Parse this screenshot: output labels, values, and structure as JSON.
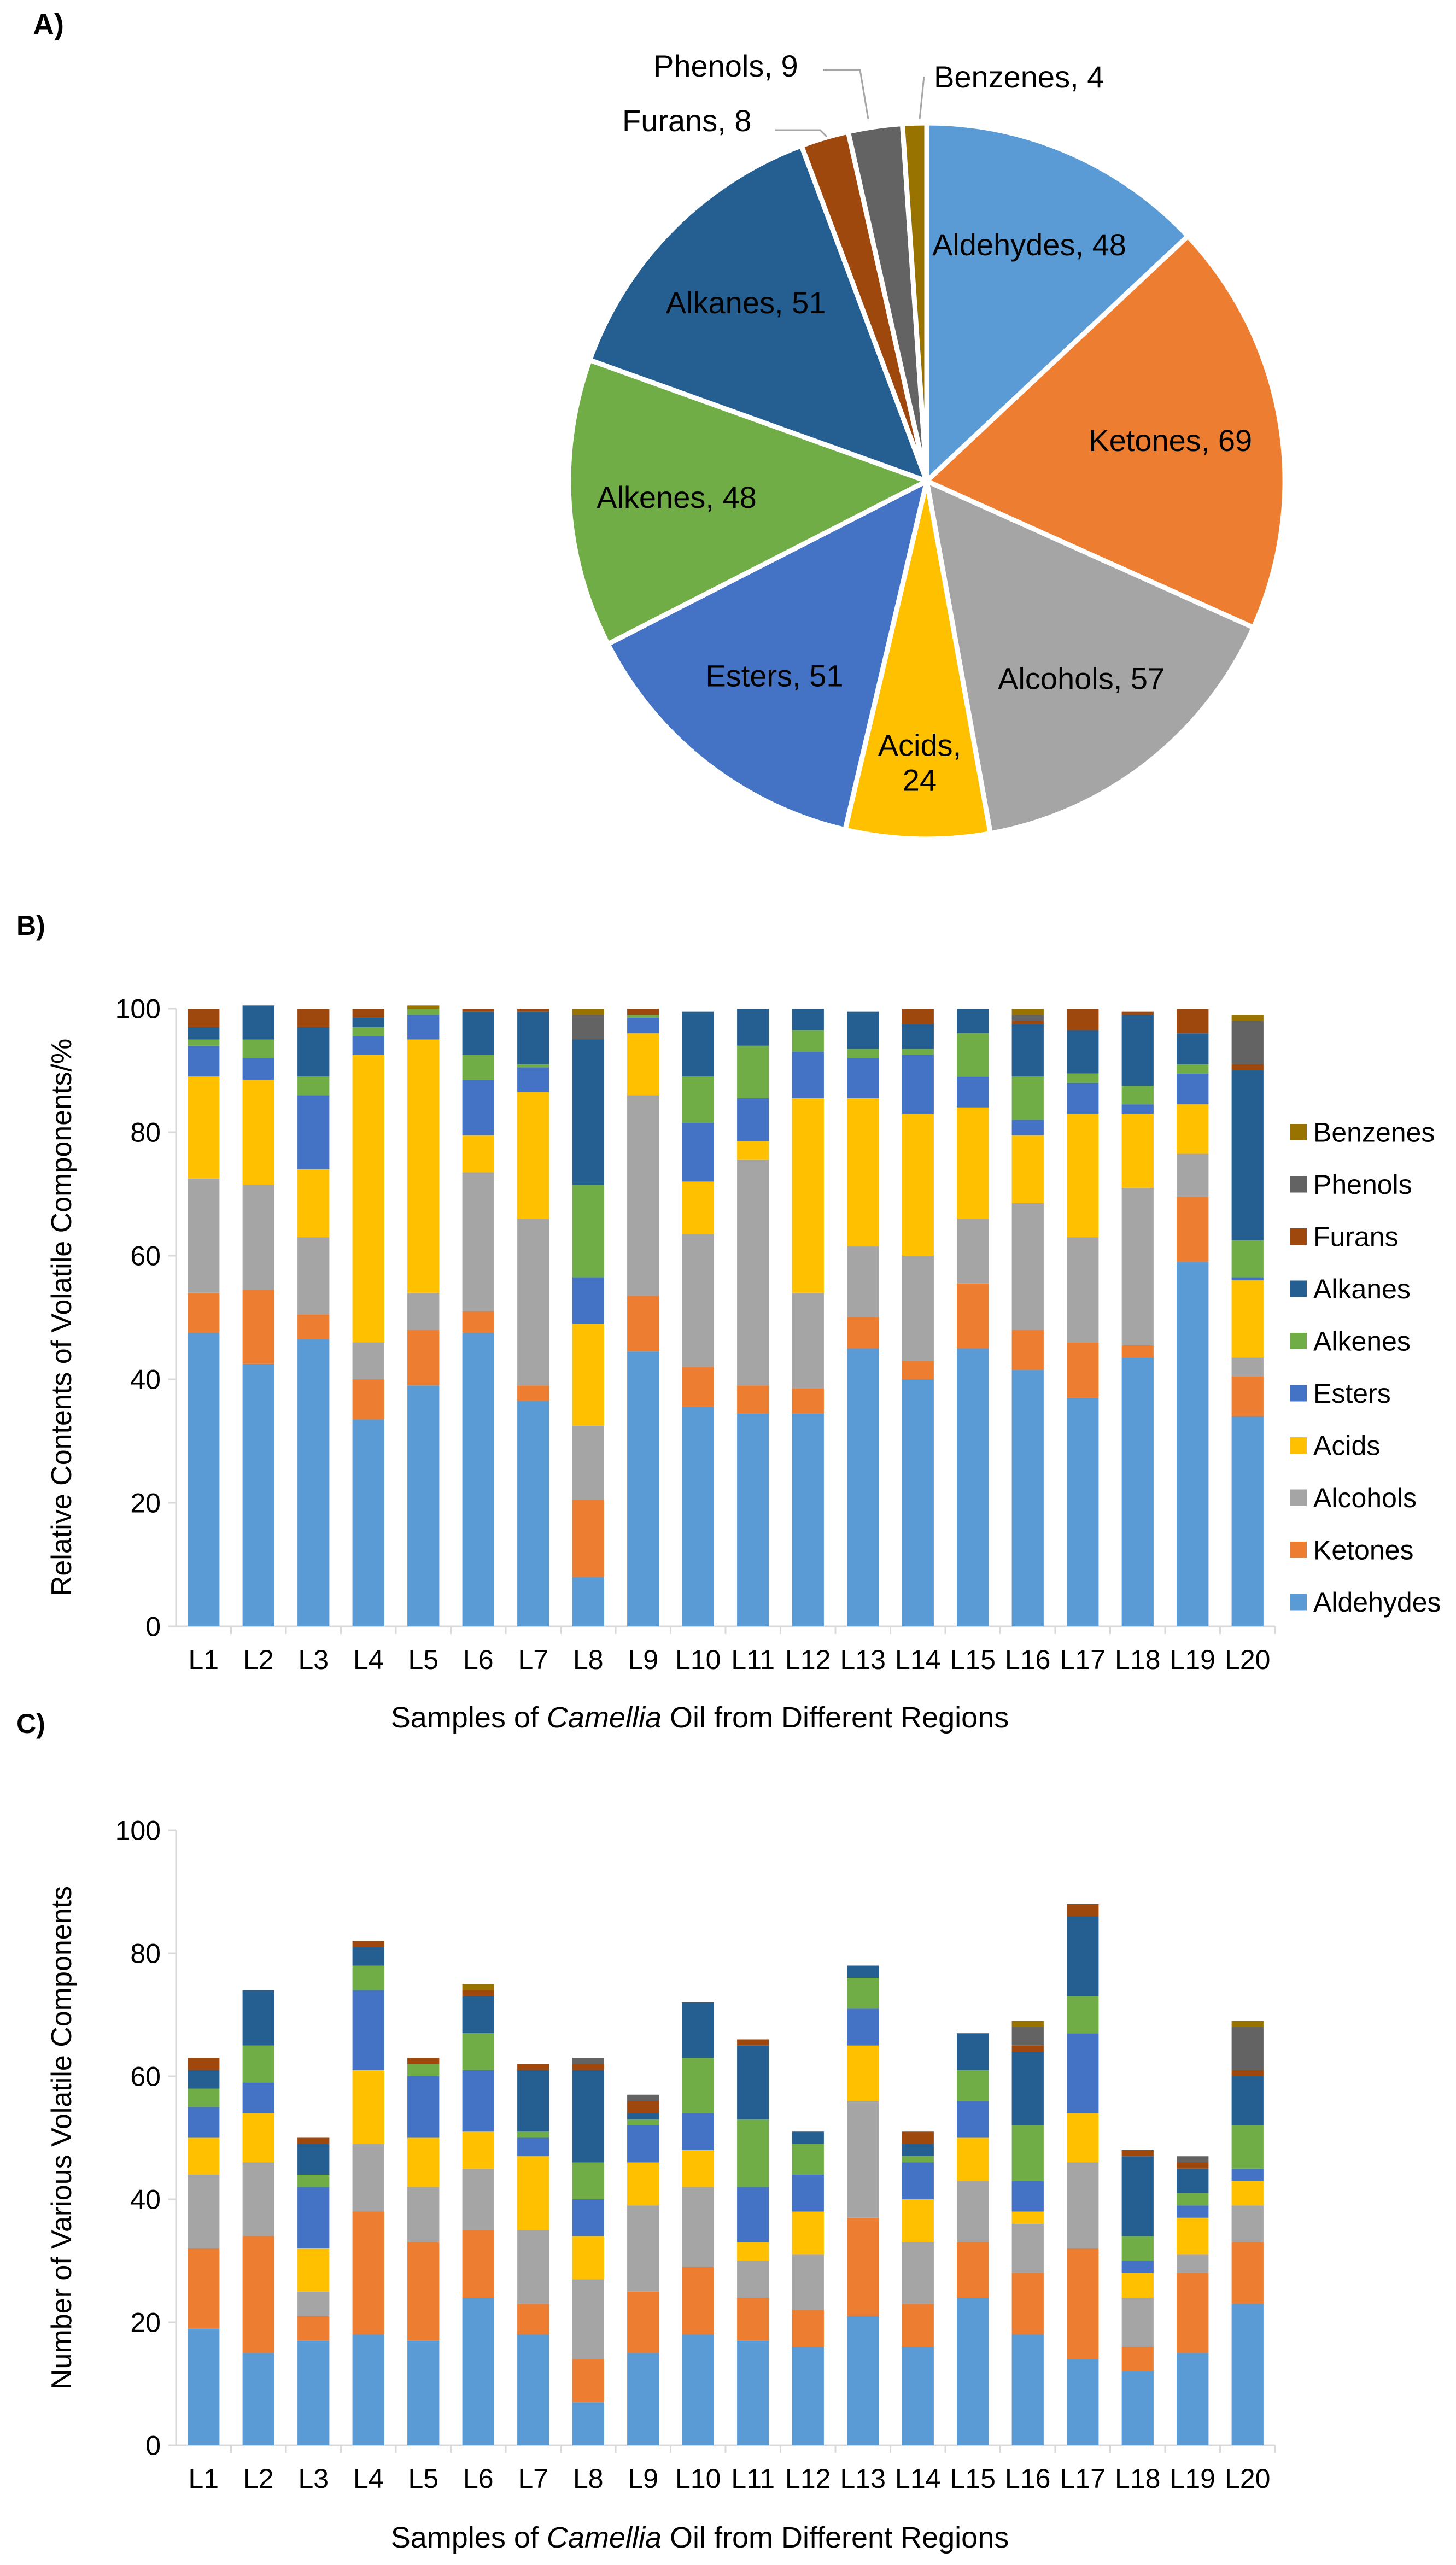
{
  "colors": {
    "Aldehydes": "#5b9bd5",
    "Ketones": "#ed7d31",
    "Alcohols": "#a5a5a5",
    "Acids": "#ffc000",
    "Esters": "#4472c4",
    "Alkenes": "#70ad47",
    "Alkanes": "#255e91",
    "Furans": "#9e480e",
    "Phenols": "#636363",
    "Benzenes": "#997300"
  },
  "panels": {
    "a": {
      "label": "A)"
    },
    "b": {
      "label": "B)"
    },
    "c": {
      "label": "C)"
    }
  },
  "chart_data": [
    {
      "id": "A",
      "type": "pie",
      "title": "",
      "slices": [
        {
          "name": "Aldehydes",
          "value": 48,
          "label": "Aldehydes, 48"
        },
        {
          "name": "Ketones",
          "value": 69,
          "label": "Ketones, 69"
        },
        {
          "name": "Alcohols",
          "value": 57,
          "label": "Alcohols, 57"
        },
        {
          "name": "Acids",
          "value": 24,
          "label": "Acids, 24",
          "label_lines": [
            "Acids,",
            "24"
          ]
        },
        {
          "name": "Esters",
          "value": 51,
          "label": "Esters, 51"
        },
        {
          "name": "Alkenes",
          "value": 48,
          "label": "Alkenes, 48"
        },
        {
          "name": "Alkanes",
          "value": 51,
          "label": "Alkanes, 51"
        },
        {
          "name": "Furans",
          "value": 8,
          "label": "Furans, 8"
        },
        {
          "name": "Phenols",
          "value": 9,
          "label": "Phenols, 9"
        },
        {
          "name": "Benzenes",
          "value": 4,
          "label": "Benzenes, 4"
        }
      ]
    },
    {
      "id": "B",
      "type": "bar",
      "stacked": true,
      "categories": [
        "L1",
        "L2",
        "L3",
        "L4",
        "L5",
        "L6",
        "L7",
        "L8",
        "L9",
        "L10",
        "L11",
        "L12",
        "L13",
        "L14",
        "L15",
        "L16",
        "L17",
        "L18",
        "L19",
        "L20"
      ],
      "series": [
        {
          "name": "Aldehydes",
          "values": [
            47.5,
            42.5,
            46.5,
            33.5,
            39.0,
            47.5,
            36.5,
            8.0,
            44.5,
            35.5,
            34.5,
            34.5,
            45.0,
            40.0,
            45.0,
            41.5,
            37.0,
            43.5,
            59.0,
            34.0
          ]
        },
        {
          "name": "Ketones",
          "values": [
            6.5,
            12.0,
            4.0,
            6.5,
            9.0,
            3.5,
            2.5,
            12.5,
            9.0,
            6.5,
            4.5,
            4.0,
            5.0,
            3.0,
            10.5,
            6.5,
            9.0,
            2.0,
            10.5,
            6.5
          ]
        },
        {
          "name": "Alcohols",
          "values": [
            18.5,
            17.0,
            12.5,
            6.0,
            6.0,
            22.5,
            27.0,
            12.0,
            32.5,
            21.5,
            36.5,
            15.5,
            11.5,
            17.0,
            10.5,
            20.5,
            17.0,
            25.5,
            7.0,
            3.0
          ]
        },
        {
          "name": "Acids",
          "values": [
            16.5,
            17.0,
            11.0,
            46.5,
            41.0,
            6.0,
            20.5,
            16.5,
            10.0,
            8.5,
            3.0,
            31.5,
            24.0,
            23.0,
            18.0,
            11.0,
            20.0,
            12.0,
            8.0,
            12.5
          ]
        },
        {
          "name": "Esters",
          "values": [
            5.0,
            3.5,
            12.0,
            3.0,
            4.0,
            9.0,
            4.0,
            7.5,
            2.5,
            9.5,
            7.0,
            7.5,
            6.5,
            9.5,
            5.0,
            2.5,
            5.0,
            1.5,
            5.0,
            0.5
          ]
        },
        {
          "name": "Alkenes",
          "values": [
            1.0,
            3.0,
            3.0,
            1.5,
            1.0,
            4.0,
            0.5,
            15.0,
            0.5,
            7.5,
            8.5,
            3.5,
            1.5,
            1.0,
            7.0,
            7.0,
            1.5,
            3.0,
            1.5,
            6.0
          ]
        },
        {
          "name": "Alkanes",
          "values": [
            2.0,
            5.5,
            8.0,
            1.5,
            0.0,
            7.0,
            8.5,
            23.5,
            0.0,
            10.5,
            6.0,
            3.5,
            6.0,
            4.0,
            4.0,
            8.5,
            7.0,
            11.5,
            5.0,
            27.5
          ]
        },
        {
          "name": "Furans",
          "values": [
            3.0,
            0.0,
            3.0,
            1.5,
            0.0,
            0.5,
            0.5,
            0.0,
            1.0,
            0.0,
            0.0,
            0.0,
            0.0,
            2.5,
            0.0,
            0.5,
            3.5,
            0.5,
            4.0,
            1.0
          ]
        },
        {
          "name": "Phenols",
          "values": [
            0.0,
            0.0,
            0.0,
            0.0,
            0.0,
            0.0,
            0.0,
            4.0,
            0.0,
            0.0,
            0.0,
            0.0,
            0.0,
            0.0,
            0.0,
            1.0,
            0.0,
            0.0,
            0.0,
            7.0
          ]
        },
        {
          "name": "Benzenes",
          "values": [
            0.0,
            0.0,
            0.0,
            0.0,
            0.5,
            0.0,
            0.0,
            1.0,
            0.0,
            0.0,
            0.0,
            0.0,
            0.0,
            0.0,
            0.0,
            1.0,
            0.0,
            0.0,
            0.0,
            1.0
          ]
        }
      ],
      "ylim": [
        0,
        100
      ],
      "yticks": [
        0,
        20,
        40,
        60,
        80,
        100
      ],
      "ylabel": "Relative Contents of Volatile Components/%",
      "xlabel_parts": [
        "Samples of ",
        "Camellia",
        " Oil from Different Regions"
      ],
      "legend_position": "right",
      "legend_order": [
        "Benzenes",
        "Phenols",
        "Furans",
        "Alkanes",
        "Alkenes",
        "Esters",
        "Acids",
        "Alcohols",
        "Ketones",
        "Aldehydes"
      ]
    },
    {
      "id": "C",
      "type": "bar",
      "stacked": true,
      "categories": [
        "L1",
        "L2",
        "L3",
        "L4",
        "L5",
        "L6",
        "L7",
        "L8",
        "L9",
        "L10",
        "L11",
        "L12",
        "L13",
        "L14",
        "L15",
        "L16",
        "L17",
        "L18",
        "L19",
        "L20"
      ],
      "series": [
        {
          "name": "Aldehydes",
          "values": [
            19,
            15,
            17,
            18,
            17,
            24,
            18,
            7,
            15,
            18,
            17,
            16,
            21,
            16,
            24,
            18,
            14,
            12,
            15,
            23
          ]
        },
        {
          "name": "Ketones",
          "values": [
            13,
            19,
            4,
            20,
            16,
            11,
            5,
            7,
            10,
            11,
            7,
            6,
            16,
            7,
            9,
            10,
            18,
            4,
            13,
            10
          ]
        },
        {
          "name": "Alcohols",
          "values": [
            12,
            12,
            4,
            11,
            9,
            10,
            12,
            13,
            14,
            13,
            6,
            9,
            19,
            10,
            10,
            8,
            14,
            8,
            3,
            6
          ]
        },
        {
          "name": "Acids",
          "values": [
            6,
            8,
            7,
            12,
            8,
            6,
            12,
            7,
            7,
            6,
            3,
            7,
            9,
            7,
            7,
            2,
            8,
            4,
            6,
            4
          ]
        },
        {
          "name": "Esters",
          "values": [
            5,
            5,
            10,
            13,
            10,
            10,
            3,
            6,
            6,
            6,
            9,
            6,
            6,
            6,
            6,
            5,
            13,
            2,
            2,
            2
          ]
        },
        {
          "name": "Alkenes",
          "values": [
            3,
            6,
            2,
            4,
            2,
            6,
            1,
            6,
            1,
            9,
            11,
            5,
            5,
            1,
            5,
            9,
            6,
            4,
            2,
            7
          ]
        },
        {
          "name": "Alkanes",
          "values": [
            3,
            9,
            5,
            3,
            0,
            6,
            10,
            15,
            1,
            9,
            12,
            2,
            2,
            2,
            6,
            12,
            13,
            13,
            4,
            8
          ]
        },
        {
          "name": "Furans",
          "values": [
            2,
            0,
            1,
            1,
            1,
            1,
            1,
            1,
            2,
            0,
            1,
            0,
            0,
            2,
            0,
            1,
            2,
            1,
            1,
            1
          ]
        },
        {
          "name": "Phenols",
          "values": [
            0,
            0,
            0,
            0,
            0,
            0,
            0,
            1,
            1,
            0,
            0,
            0,
            0,
            0,
            0,
            3,
            0,
            0,
            1,
            7
          ]
        },
        {
          "name": "Benzenes",
          "values": [
            0,
            0,
            0,
            0,
            0,
            1,
            0,
            0,
            0,
            0,
            0,
            0,
            0,
            0,
            0,
            1,
            0,
            0,
            0,
            1
          ]
        }
      ],
      "ylim": [
        0,
        100
      ],
      "yticks": [
        0,
        20,
        40,
        60,
        80,
        100
      ],
      "ylabel": "Number of Various Volatile Components",
      "xlabel_parts": [
        "Samples of ",
        "Camellia",
        " Oil from Different Regions"
      ]
    }
  ]
}
